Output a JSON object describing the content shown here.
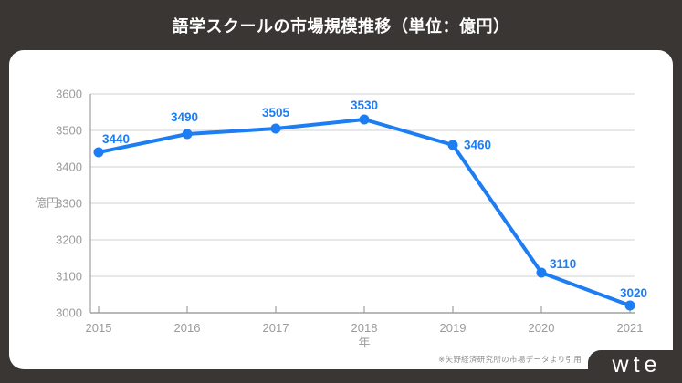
{
  "page": {
    "title": "語学スクールの市場規模推移（単位：億円）"
  },
  "footer": {
    "source_note": "※矢野経済研究所の市場データより引用",
    "logo": "wte"
  },
  "chart_data": {
    "type": "line",
    "title": "語学スクールの市場規模推移",
    "unit": "億円",
    "categories": [
      "2015",
      "2016",
      "2017",
      "2018",
      "2019",
      "2020",
      "2021"
    ],
    "values": [
      3440,
      3490,
      3505,
      3530,
      3460,
      3110,
      3020
    ],
    "xlabel": "年",
    "ylabel": "億円",
    "ylim": [
      3000,
      3600
    ],
    "yticks": [
      3000,
      3100,
      3200,
      3300,
      3400,
      3500,
      3600
    ],
    "grid": true,
    "legend": "none",
    "data_labels_shown": true
  },
  "colors": {
    "background": "#3a3633",
    "card": "#ffffff",
    "line": "#1d7df2",
    "point": "#1d7df2",
    "data_label": "#1d7df2",
    "axis": "#a0a0a0",
    "gridline": "#d2d2d2",
    "tick_label": "#9b9b9b",
    "title_text": "#ffffff",
    "source_note": "#8f8f8f",
    "logo_bg": "#3a3633",
    "logo_text": "#ffffff"
  }
}
